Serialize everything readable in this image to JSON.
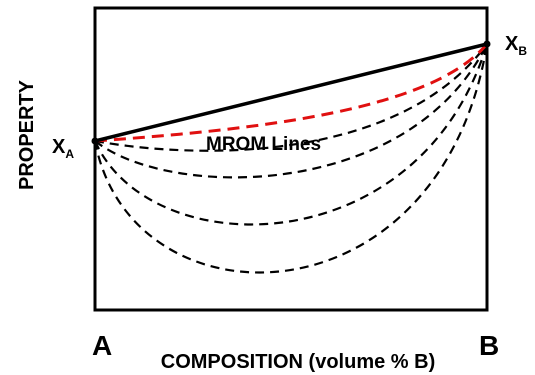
{
  "labels": {
    "y_axis": "PROPERTY",
    "x_axis": "COMPOSITION (volume % B)",
    "end_left": "A",
    "end_right": "B",
    "point_left": {
      "letter": "X",
      "subscript": "A"
    },
    "point_right": {
      "letter": "X",
      "subscript": "B"
    },
    "annotation": "MROM Lines"
  },
  "colors": {
    "line": "#000000",
    "highlight_curve": "#e01010",
    "frame": "#000000",
    "background": "#ffffff"
  },
  "curves": {
    "solid_line": "straight line from X_A to X_B",
    "red_dashed": "upper MROM curve, bowed slightly below the straight line",
    "black_dashed_count": 4
  }
}
